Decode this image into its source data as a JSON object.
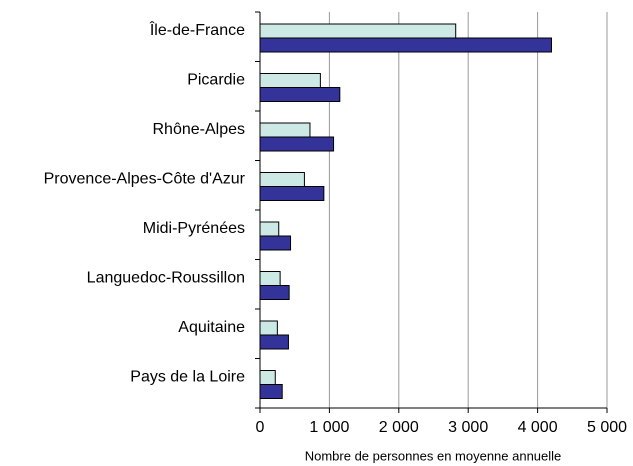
{
  "chart_data": {
    "type": "barh",
    "categories": [
      "Île-de-France",
      "Picardie",
      "Rhône-Alpes",
      "Provence-Alpes-Côte d'Azur",
      "Midi-Pyrénées",
      "Languedoc-Roussillon",
      "Aquitaine",
      "Pays de la Loire"
    ],
    "series": [
      {
        "color": "#cce9e6",
        "values": [
          2820,
          870,
          720,
          640,
          270,
          290,
          250,
          220
        ]
      },
      {
        "color": "#333399",
        "values": [
          4200,
          1150,
          1060,
          920,
          440,
          420,
          410,
          320
        ]
      }
    ],
    "xlim": [
      0,
      5000
    ],
    "xticks": [
      0,
      {
        "value": 1000,
        "label": "1 000"
      },
      {
        "value": 2000,
        "label": "2 000"
      },
      {
        "value": 3000,
        "label": "3 000"
      },
      {
        "value": 4000,
        "label": "4 000"
      },
      {
        "value": 5000,
        "label": "5 000"
      }
    ],
    "xlabel": "Nombre de personnes en moyenne annuelle",
    "grid": true
  }
}
